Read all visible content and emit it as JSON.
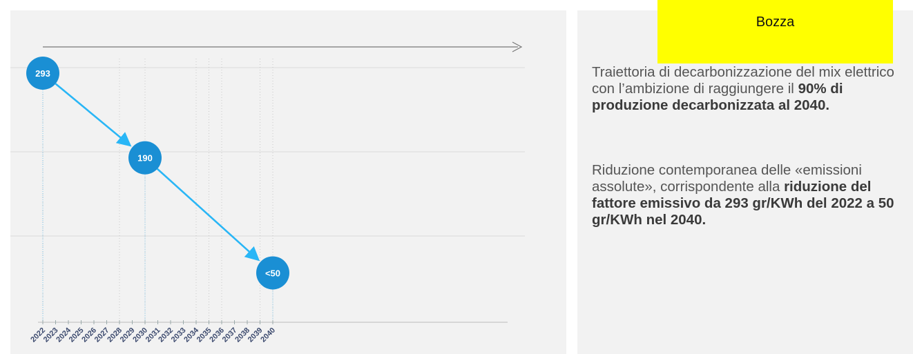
{
  "draft_label": "Bozza",
  "chart_data": {
    "type": "line",
    "x": [
      2022,
      2030,
      2040
    ],
    "values": [
      293,
      190,
      50
    ],
    "point_labels": [
      "293",
      "190",
      "<50"
    ],
    "categories": [
      "2022",
      "2023",
      "2024",
      "2025",
      "2026",
      "2027",
      "2028",
      "2029",
      "2030",
      "2031",
      "2032",
      "2033",
      "2034",
      "2035",
      "2036",
      "2037",
      "2038",
      "2039",
      "2040"
    ],
    "title": "",
    "xlabel": "",
    "ylabel": "",
    "grid": true,
    "colors": {
      "line": "#29b6f6",
      "marker": "#1a8fd4",
      "marker_text": "#ffffff",
      "grid": "#d9d9d9",
      "tick": "#3c4a6e"
    }
  },
  "description": {
    "p1_text": "Traiettoria di decarbonizzazione del mix elettrico con l’ambizione di raggiungere il",
    "p1_bold": "90% di produzione decarbonizzata al 2040.",
    "p2_text": "Riduzione contemporanea delle «emissioni assolute», corrispondente alla",
    "p2_bold": "riduzione del fattore emissivo da 293 gr/KWh del 2022 a 50 gr/KWh nel 2040."
  }
}
